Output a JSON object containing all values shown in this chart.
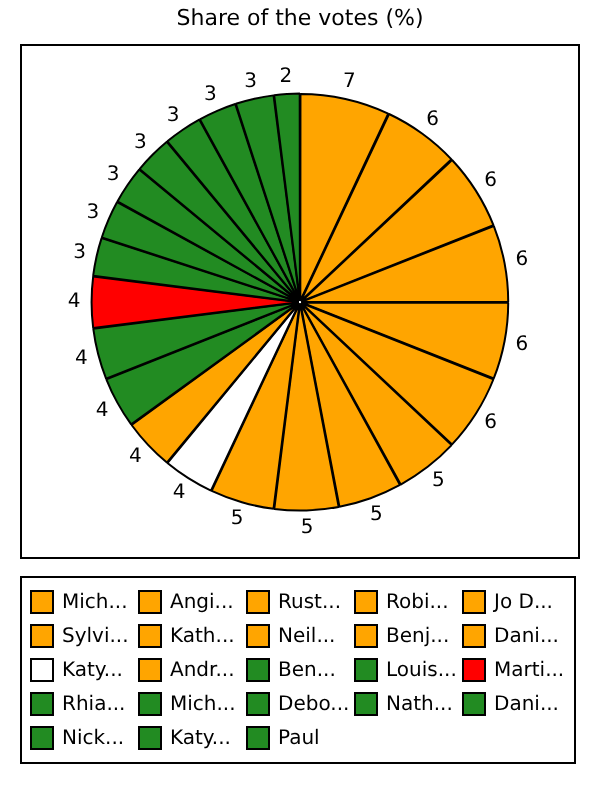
{
  "chart_data": {
    "type": "pie",
    "title": "Share of the votes (%)",
    "categories": [
      "Mich...",
      "Angi...",
      "Rust...",
      "Robi...",
      "Jo D...",
      "Sylvi...",
      "Kath...",
      "Neil...",
      "Benj...",
      "Dani...",
      "Katy...",
      "Andr...",
      "Ben...",
      "Louis...",
      "Marti...",
      "Rhia...",
      "Mich...",
      "Debo...",
      "Nath...",
      "Dani...",
      "Nick...",
      "Katy...",
      "Paul"
    ],
    "values": [
      7,
      6,
      6,
      6,
      6,
      6,
      5,
      5,
      5,
      5,
      4,
      4,
      4,
      4,
      4,
      3,
      3,
      3,
      3,
      3,
      3,
      3,
      2
    ],
    "colors": [
      "#ffa500",
      "#ffa500",
      "#ffa500",
      "#ffa500",
      "#ffa500",
      "#ffa500",
      "#ffa500",
      "#ffa500",
      "#ffa500",
      "#ffa500",
      "#ffffff",
      "#ffa500",
      "#228b22",
      "#228b22",
      "#ff0000",
      "#228b22",
      "#228b22",
      "#228b22",
      "#228b22",
      "#228b22",
      "#228b22",
      "#228b22",
      "#228b22"
    ],
    "data_labels": true,
    "legend": "bottom"
  }
}
